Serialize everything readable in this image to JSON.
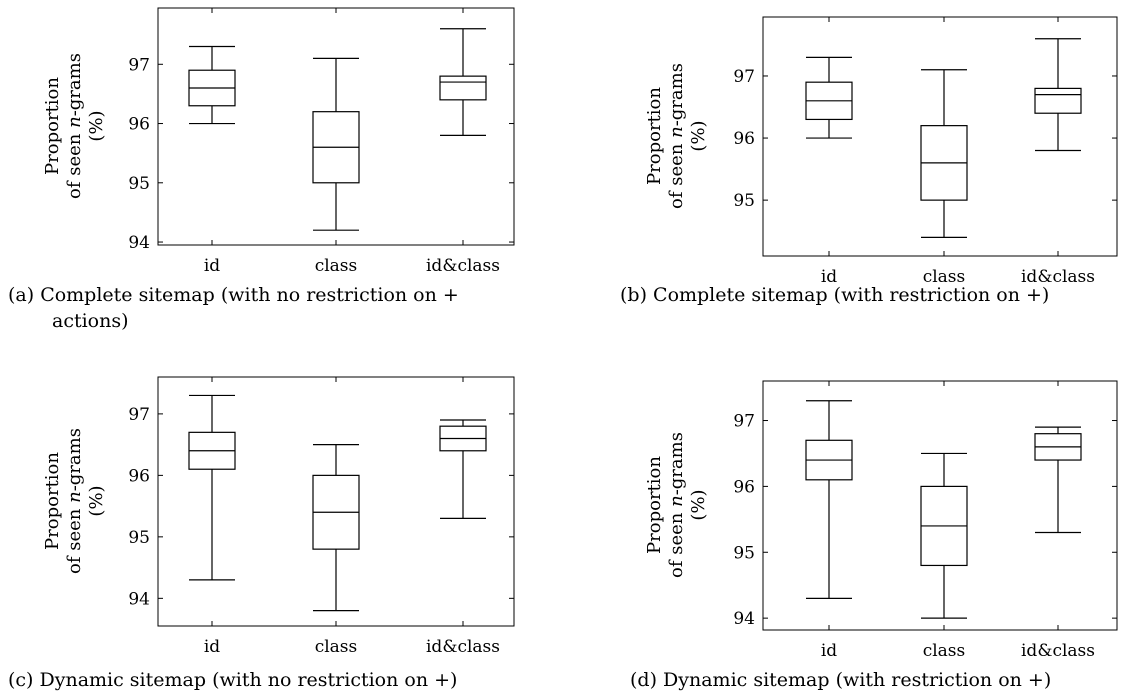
{
  "chart_data": [
    {
      "type": "boxplot",
      "caption_lines": [
        "(a) Complete sitemap (with no restriction on +",
        "actions)"
      ],
      "ylabel_lines": [
        "Proportion",
        "of seen n-grams",
        "(%)"
      ],
      "ylim": [
        93.95,
        97.95
      ],
      "yticks": [
        94,
        95,
        96,
        97
      ],
      "categories": [
        "id",
        "class",
        "id&class"
      ],
      "boxes": [
        {
          "category": "id",
          "min": 96.0,
          "q1": 96.3,
          "median": 96.6,
          "q3": 96.9,
          "max": 97.3
        },
        {
          "category": "class",
          "min": 94.2,
          "q1": 95.0,
          "median": 95.6,
          "q3": 96.2,
          "max": 97.1
        },
        {
          "category": "id&class",
          "min": 95.8,
          "q1": 96.4,
          "median": 96.7,
          "q3": 96.8,
          "max": 97.6
        }
      ]
    },
    {
      "type": "boxplot",
      "caption_lines": [
        "(b) Complete sitemap (with restriction on +)"
      ],
      "ylabel_lines": [
        "Proportion",
        "of seen n-grams",
        "(%)"
      ],
      "ylim": [
        94.1,
        97.95
      ],
      "yticks": [
        95,
        96,
        97
      ],
      "categories": [
        "id",
        "class",
        "id&class"
      ],
      "boxes": [
        {
          "category": "id",
          "min": 96.0,
          "q1": 96.3,
          "median": 96.6,
          "q3": 96.9,
          "max": 97.3
        },
        {
          "category": "class",
          "min": 94.4,
          "q1": 95.0,
          "median": 95.6,
          "q3": 96.2,
          "max": 97.1
        },
        {
          "category": "id&class",
          "min": 95.8,
          "q1": 96.4,
          "median": 96.7,
          "q3": 96.8,
          "max": 97.6
        }
      ]
    },
    {
      "type": "boxplot",
      "caption_lines": [
        "(c) Dynamic sitemap (with no restriction on +)"
      ],
      "ylabel_lines": [
        "Proportion",
        "of seen n-grams",
        "(%)"
      ],
      "ylim": [
        93.55,
        97.6
      ],
      "yticks": [
        94,
        95,
        96,
        97
      ],
      "categories": [
        "id",
        "class",
        "id&class"
      ],
      "boxes": [
        {
          "category": "id",
          "min": 94.3,
          "q1": 96.1,
          "median": 96.4,
          "q3": 96.7,
          "max": 97.3
        },
        {
          "category": "class",
          "min": 93.8,
          "q1": 94.8,
          "median": 95.4,
          "q3": 96.0,
          "max": 96.5
        },
        {
          "category": "id&class",
          "min": 95.3,
          "q1": 96.4,
          "median": 96.6,
          "q3": 96.8,
          "max": 96.9
        }
      ]
    },
    {
      "type": "boxplot",
      "caption_lines": [
        "(d) Dynamic sitemap (with restriction on +)"
      ],
      "ylabel_lines": [
        "Proportion",
        "of seen n-grams",
        "(%)"
      ],
      "ylim": [
        93.82,
        97.6
      ],
      "yticks": [
        94,
        95,
        96,
        97
      ],
      "categories": [
        "id",
        "class",
        "id&class"
      ],
      "boxes": [
        {
          "category": "id",
          "min": 94.3,
          "q1": 96.1,
          "median": 96.4,
          "q3": 96.7,
          "max": 97.3
        },
        {
          "category": "class",
          "min": 94.0,
          "q1": 94.8,
          "median": 95.4,
          "q3": 96.0,
          "max": 96.5
        },
        {
          "category": "id&class",
          "min": 95.3,
          "q1": 96.4,
          "median": 96.6,
          "q3": 96.8,
          "max": 96.9
        }
      ]
    }
  ]
}
